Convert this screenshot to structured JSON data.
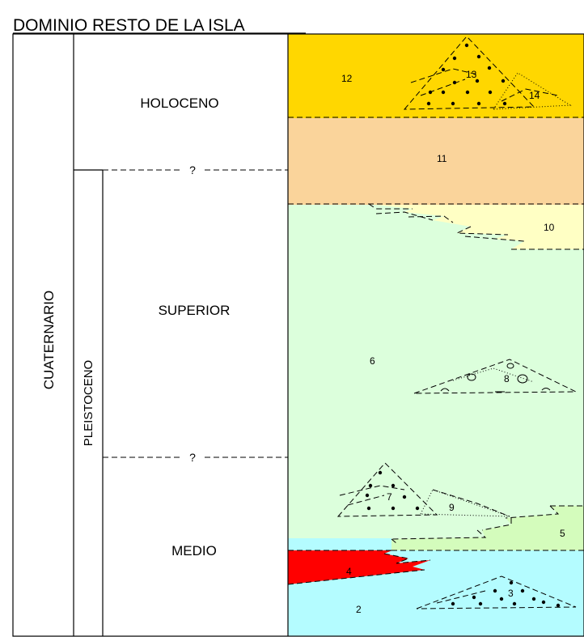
{
  "title": "DOMINIO RESTO DE LA ISLA",
  "columns": {
    "system": "CUATERNARIO",
    "series": "PLEISTOCENO",
    "holoceno": "HOLOCENO",
    "superior": "SUPERIOR",
    "medio": "MEDIO",
    "boundary_mark_upper": "?",
    "boundary_mark_lower": "?"
  },
  "units": {
    "u2": "2",
    "u3": "3",
    "u4": "4",
    "u5": "5",
    "u6": "6",
    "u7": "7",
    "u8": "8",
    "u9": "9",
    "u10": "10",
    "u11": "11",
    "u12": "12",
    "u13": "13",
    "u14": "14"
  },
  "colors": {
    "unit12": "#ffd700",
    "unit11": "#fad49b",
    "unit10": "#ffffc4",
    "unit6": "#dcffdc",
    "unit5": "#d4fcbc",
    "unit4": "#ff0000",
    "unit2": "#b4fcff"
  }
}
